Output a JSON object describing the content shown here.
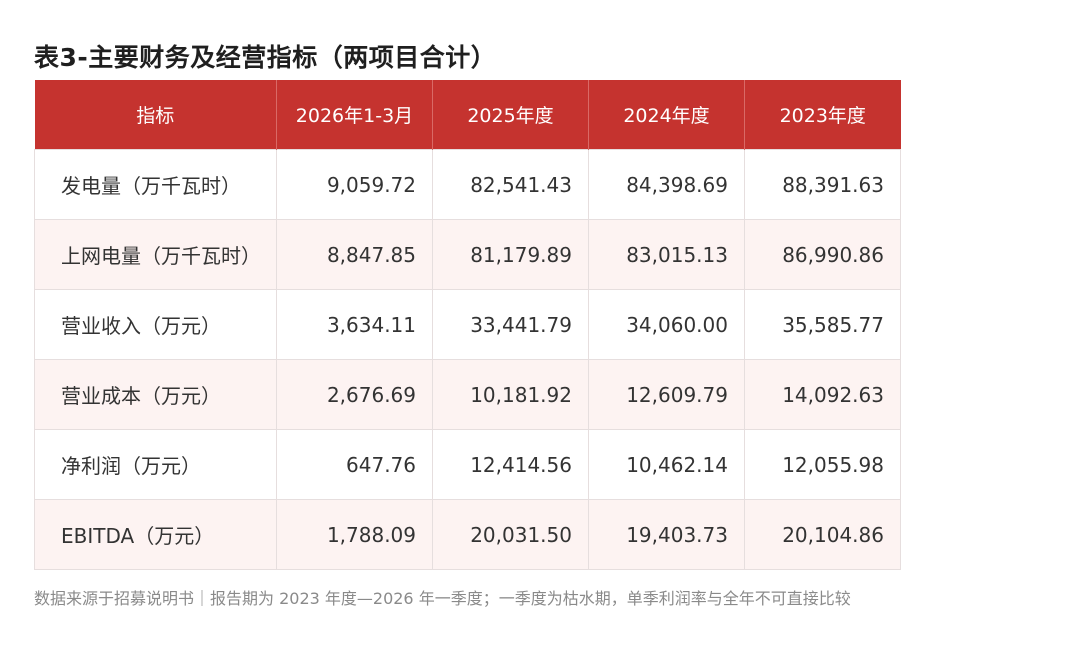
{
  "title": "表3-主要财务及经营指标（两项目合计）",
  "table": {
    "headers": [
      "指标",
      "2026年1-3月",
      "2025年度",
      "2024年度",
      "2023年度"
    ],
    "rows": [
      {
        "label": "发电量（万千瓦时）",
        "values": [
          "9,059.72",
          "82,541.43",
          "84,398.69",
          "88,391.63"
        ]
      },
      {
        "label": "上网电量（万千瓦时）",
        "values": [
          "8,847.85",
          "81,179.89",
          "83,015.13",
          "86,990.86"
        ]
      },
      {
        "label": "营业收入（万元）",
        "values": [
          "3,634.11",
          "33,441.79",
          "34,060.00",
          "35,585.77"
        ]
      },
      {
        "label": "营业成本（万元）",
        "values": [
          "2,676.69",
          "10,181.92",
          "12,609.79",
          "14,092.63"
        ]
      },
      {
        "label": "净利润（万元）",
        "values": [
          "647.76",
          "12,414.56",
          "10,462.14",
          "12,055.98"
        ]
      },
      {
        "label": "EBITDA（万元）",
        "values": [
          "1,788.09",
          "20,031.50",
          "19,403.73",
          "20,104.86"
        ]
      }
    ]
  },
  "footnote": "数据来源于招募说明书｜报告期为 2023 年度—2026 年一季度；一季度为枯水期，单季利润率与全年不可直接比较",
  "colors": {
    "header_bg": "#c5332f",
    "header_text": "#ffffff",
    "stripe_bg": "#fdf3f2"
  }
}
